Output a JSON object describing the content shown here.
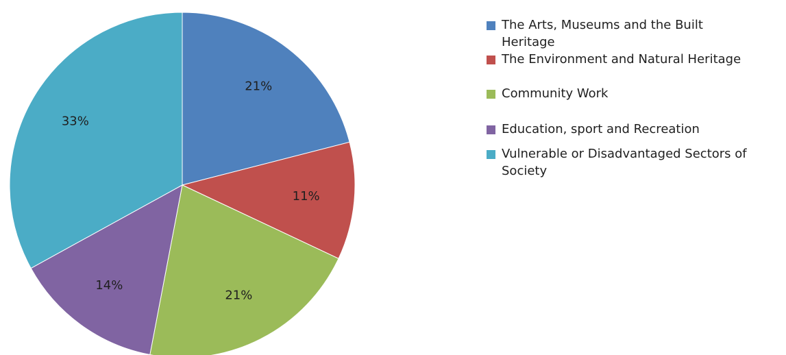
{
  "chart_data": {
    "type": "pie",
    "title": "",
    "categories": [
      "The Arts, Museums and the Built Heritage",
      "The Environment and Natural Heritage",
      "Community Work",
      "Education, sport and Recreation",
      "Vulnerable or Disadvantaged Sectors of Society"
    ],
    "values": [
      21,
      11,
      21,
      14,
      33
    ],
    "labels": [
      "21%",
      "11%",
      "21%",
      "14%",
      "33%"
    ],
    "colors": [
      "#4f81bd",
      "#c0504d",
      "#9bbb59",
      "#8064a2",
      "#4bacc6"
    ],
    "legend": "right",
    "start_angle": "12 o'clock",
    "direction": "clockwise"
  }
}
